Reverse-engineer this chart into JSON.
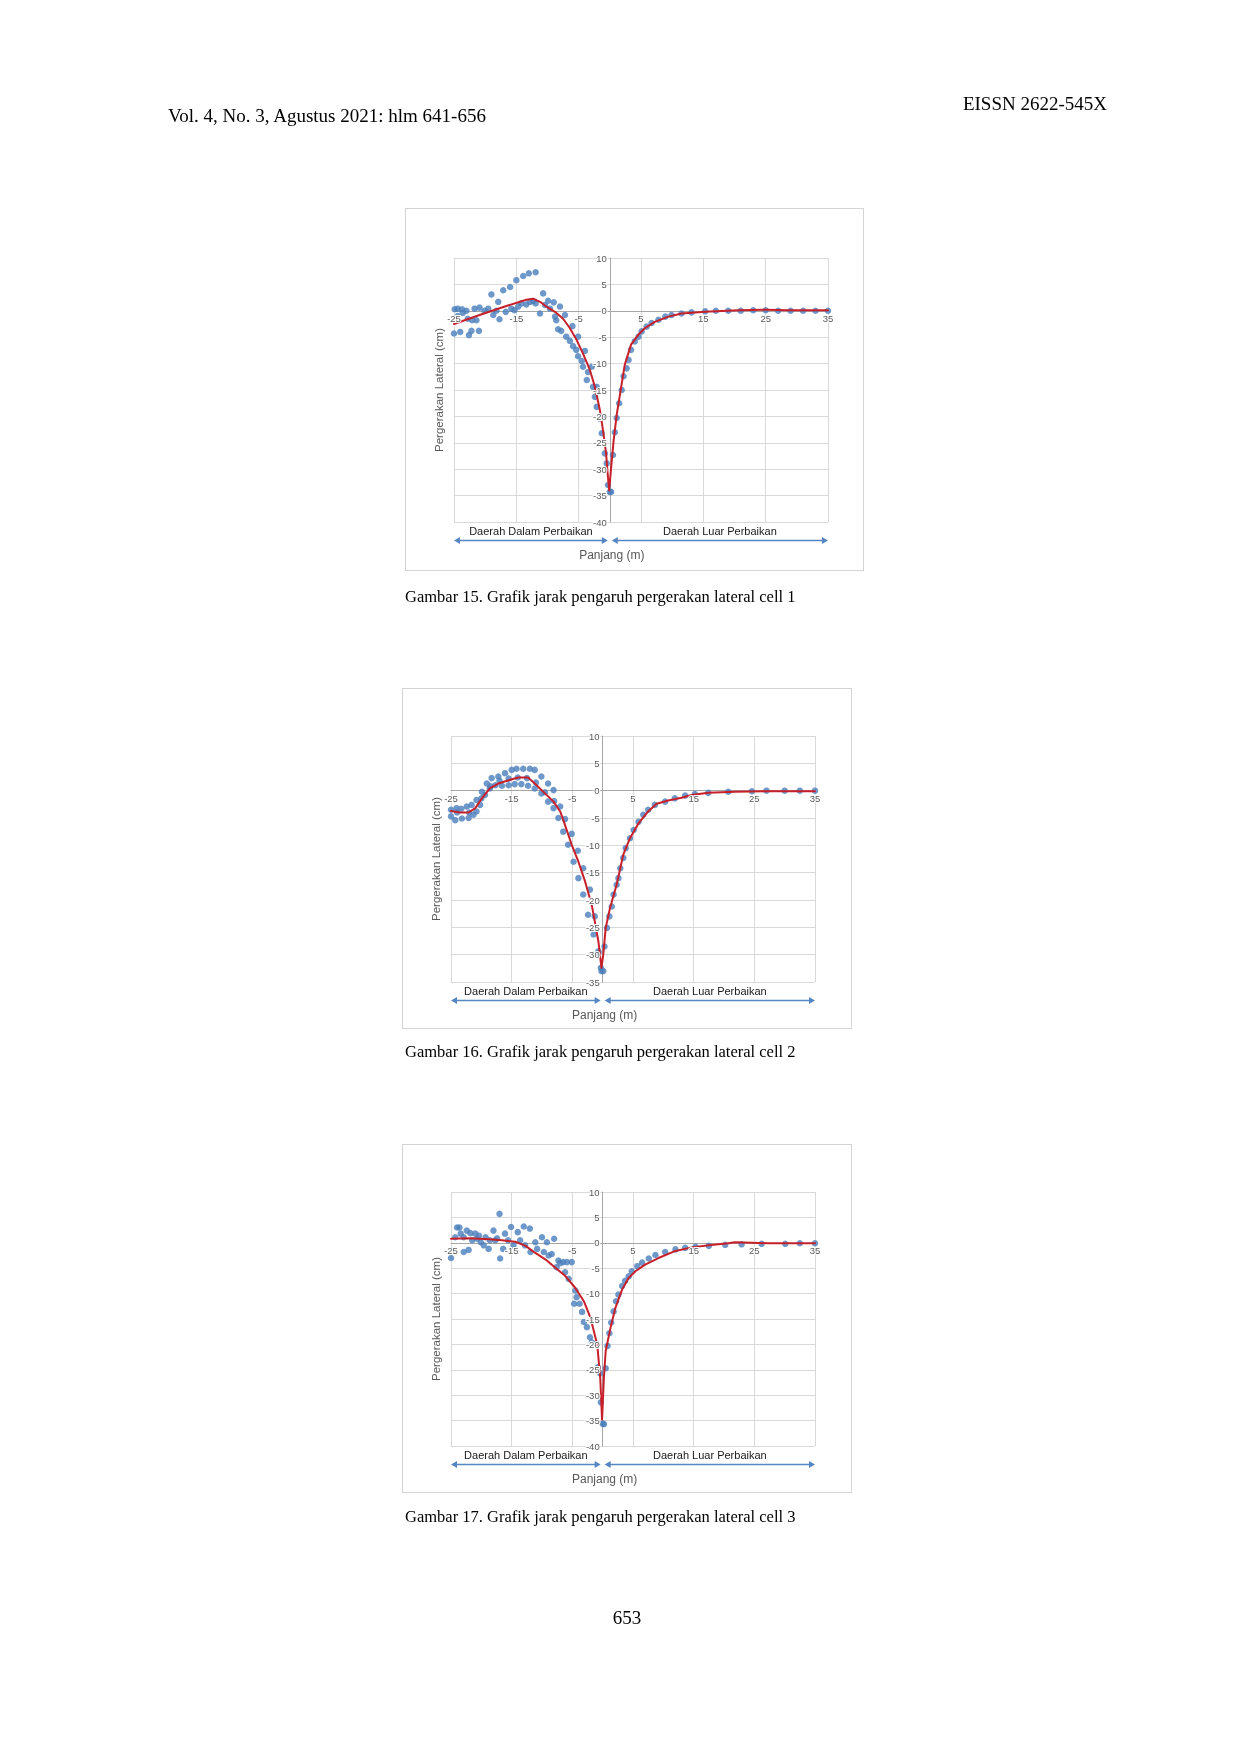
{
  "chart_data": [
    {
      "type": "scatter",
      "xlabel": "Panjang (m)",
      "ylabel": "Pergerakan Lateral (cm)",
      "annotations": [
        "Vol. 4, No. 3, Agustus 2021: hlm 641-656",
        "EISSN 2622-545X",
        "Daerah Dalam Perbaikan",
        "Daerah Luar Perbaikan",
        "Gambar 15. Grafik jarak pengaruh pergerakan lateral cell 1"
      ],
      "xlim": [
        -25,
        35
      ],
      "xticks": [
        -25,
        -15,
        -5,
        5,
        15,
        25,
        35
      ],
      "ylim": [
        -40,
        10
      ],
      "yticks": [
        -40,
        -35,
        -30,
        -25,
        -20,
        -15,
        -10,
        -5,
        0,
        5,
        10
      ],
      "grid": true,
      "marker": "circle",
      "series": [
        {
          "color": "#4a7ebb",
          "x": [
            -25,
            -24.9,
            -24.4,
            -24.4,
            -24,
            -23.7,
            -23.6,
            -23,
            -22.8,
            -22.6,
            -22.2,
            -22.1,
            -21.7,
            -21.4,
            -21,
            -20.9,
            -20.1,
            -19.5,
            -19,
            -18.7,
            -18.2,
            -17.9,
            -17.7,
            -17.1,
            -16.7,
            -16,
            -15.8,
            -15.3,
            -15,
            -14.7,
            -14.2,
            -13.9,
            -13.4,
            -13,
            -12.8,
            -12.3,
            -11.9,
            -11.9,
            -11.2,
            -10.7,
            -10.4,
            -9.9,
            -9.6,
            -9,
            -8.8,
            -8.6,
            -8.3,
            -8,
            -7.8,
            -7.2,
            -7,
            -6.4,
            -6,
            -5.9,
            -5.4,
            -5.1,
            -5.1,
            -4.5,
            -4.3,
            -4,
            -3.7,
            -3.5,
            -2.9,
            -2.7,
            -2.4,
            -2.1,
            -2.1,
            -1.7,
            -1.3,
            -1,
            -0.8,
            -0.5,
            -0.3,
            0,
            0.2,
            0.5,
            0.8,
            1.1,
            1.5,
            1.9,
            2.2,
            2.7,
            3,
            3.4,
            4,
            4.6,
            5.1,
            5.9,
            6.7,
            7.8,
            8.9,
            9.9,
            11.5,
            13.1,
            15.3,
            17,
            19,
            21,
            23,
            25,
            27,
            29,
            31,
            33,
            35
          ],
          "values": [
            -4.3,
            0.3,
            0.4,
            -1,
            -4,
            0.3,
            -0.4,
            0,
            -1.5,
            -4.6,
            -3.8,
            -1.8,
            0.4,
            -1.8,
            -3.8,
            0.6,
            0,
            0.4,
            3.1,
            -0.8,
            0,
            1.7,
            -1.6,
            3.9,
            -0.2,
            4.5,
            0.4,
            0.1,
            5.8,
            0.8,
            1.4,
            6.6,
            1.2,
            7.1,
            1.7,
            1.8,
            7.3,
            1.4,
            -0.5,
            3.3,
            1.1,
            1.9,
            0.4,
            1.6,
            -1.1,
            -1.8,
            -3.5,
            0.8,
            -3.8,
            -0.8,
            -4.9,
            -5.7,
            -2.9,
            -6.7,
            -7.4,
            -4.9,
            -8.6,
            -9.5,
            -10.6,
            -7.6,
            -13.1,
            -11.6,
            -10.6,
            -14.4,
            -16.3,
            -14.4,
            -18.2,
            -20.4,
            -23.2,
            -20.1,
            -27,
            -28.9,
            -33,
            -34.3,
            -34.3,
            -27.3,
            -23,
            -20.3,
            -17.5,
            -15,
            -12.4,
            -10.9,
            -9.3,
            -7.4,
            -5.8,
            -4.9,
            -3.9,
            -3,
            -2.3,
            -1.7,
            -1.1,
            -0.8,
            -0.5,
            -0.3,
            -0.1,
            0,
            0,
            0,
            0.1,
            0.1,
            0,
            0,
            0,
            0,
            0
          ]
        },
        {
          "type": "line",
          "color": "#c8202a",
          "marker": "none",
          "x": [
            -25,
            -20.9,
            -16.6,
            -13.4,
            -12.3,
            -11.2,
            -10.2,
            -8.8,
            -7.5,
            -6.4,
            -5.3,
            -4.3,
            -3.2,
            -2.4,
            -1.6,
            -1.1,
            -0.6,
            -0.4,
            -0.1,
            0.2,
            0.6,
            1.1,
            1.8,
            2.4,
            3.4,
            4.6,
            5.6,
            7.2,
            9.4,
            11.5,
            15.3,
            20.6,
            25,
            28.7,
            35
          ],
          "values": [
            -2.5,
            -0.8,
            0.9,
            2.1,
            2.3,
            1.7,
            0.8,
            -0.2,
            -1.5,
            -3.3,
            -5.6,
            -8.1,
            -11.2,
            -14.4,
            -18.8,
            -22.6,
            -27,
            -30.2,
            -34,
            -29.8,
            -24.7,
            -19.7,
            -14.6,
            -10.2,
            -6.4,
            -4.5,
            -3.3,
            -2.1,
            -1.1,
            -0.5,
            -0.2,
            0.1,
            0.2,
            0.1,
            0.1
          ]
        }
      ]
    },
    {
      "type": "scatter",
      "xlabel": "Panjang (m)",
      "ylabel": "Pergerakan Lateral (cm)",
      "annotations": [
        "Daerah Dalam Perbaikan",
        "Daerah Luar Perbaikan",
        "Gambar 16. Grafik jarak pengaruh pergerakan lateral cell 2"
      ],
      "xlim": [
        -25,
        35
      ],
      "xticks": [
        -25,
        -15,
        -5,
        5,
        15,
        25,
        35
      ],
      "ylim": [
        -35,
        10
      ],
      "yticks": [
        -35,
        -30,
        -25,
        -20,
        -15,
        -10,
        -5,
        0,
        5,
        10
      ],
      "grid": true,
      "marker": "circle",
      "series": [
        {
          "color": "#4a7ebb",
          "x": [
            -25,
            -24.1,
            -23.3,
            -22.4,
            -21.6,
            -20.8,
            -19.9,
            -19.1,
            -18.3,
            -17.2,
            -16.1,
            -15,
            -14.2,
            -13.1,
            -12,
            -11.2,
            -10.1,
            -9,
            -8.1,
            -7,
            -6.2,
            -5.1,
            -4.1,
            -3.2,
            -2.1,
            -1.3,
            -0.7,
            -0.2,
            -25,
            -24.3,
            -23.2,
            -22.1,
            -21.3,
            -20.8,
            -20.2,
            -19.4,
            -18.6,
            -17.7,
            -16.6,
            -15.5,
            -14.5,
            -13.4,
            -12.3,
            -11.2,
            -10.1,
            -9,
            -8.1,
            -7.3,
            -6.5,
            -5.7,
            -4.8,
            -4,
            -3.2,
            -2.4,
            -1.5,
            -0.7,
            -0.3,
            -24,
            -22,
            -20,
            -18.5,
            -17,
            -15.5,
            -14,
            -12.5,
            -11,
            -9.5,
            -8,
            0.1,
            0.3,
            0.7,
            1.1,
            1.5,
            1.8,
            2.3,
            2.6,
            2.9,
            3.4,
            3.8,
            4.5,
            5.1,
            5.9,
            6.7,
            7.5,
            8.6,
            10.3,
            11.9,
            13.6,
            15.2,
            17.4,
            20.7,
            24.6,
            27,
            30,
            32.5,
            35
          ],
          "values": [
            -3.5,
            -3.2,
            -3.3,
            -2.9,
            -2.6,
            -1.7,
            -0.2,
            1.3,
            2.3,
            2.6,
            3.2,
            3.8,
            4,
            4,
            4,
            3.8,
            2.6,
            1.3,
            0.1,
            -2.9,
            -5.2,
            -7.9,
            -11,
            -14.2,
            -18.1,
            -23,
            -29.7,
            -33,
            -4.7,
            -5.4,
            -5.1,
            -5,
            -4.4,
            -3.8,
            -2.6,
            -0.8,
            0.4,
            1,
            0.9,
            1,
            1.2,
            1.2,
            0.9,
            0.4,
            -0.5,
            -2,
            -3.2,
            -5,
            -7.5,
            -9.9,
            -13,
            -16,
            -19,
            -22.7,
            -26.3,
            -29.4,
            -32.4,
            -4,
            -4,
            -1.4,
            0.8,
            1.8,
            2.2,
            2.4,
            2.3,
            1.5,
            -0.3,
            -1.9,
            -33,
            -28.5,
            -25.1,
            -23,
            -21.2,
            -19,
            -17.2,
            -16,
            -14.2,
            -12.3,
            -10.5,
            -8.7,
            -7.2,
            -5.7,
            -4.4,
            -3.5,
            -2.6,
            -2,
            -1.4,
            -0.9,
            -0.6,
            -0.4,
            -0.2,
            -0.1,
            0,
            0,
            0,
            0
          ]
        },
        {
          "type": "line",
          "color": "#c8202a",
          "marker": "none",
          "x": [
            -25,
            -23.5,
            -22.1,
            -21,
            -19.9,
            -18.6,
            -17.2,
            -15.5,
            -13.9,
            -12.3,
            -11.2,
            -9.5,
            -8.1,
            -7,
            -6.2,
            -5.1,
            -4,
            -2.9,
            -1.8,
            -0.7,
            -0.2,
            0.1,
            0.5,
            1.2,
            2.3,
            3.4,
            4.5,
            5.9,
            7.5,
            8.9,
            10.8,
            13,
            14.7,
            17.4,
            21.8,
            27.3,
            35
          ],
          "values": [
            -3.7,
            -4,
            -4,
            -3.2,
            -1.4,
            0.4,
            1.3,
            1.9,
            2.4,
            2.4,
            1.3,
            -0.5,
            -2,
            -3.8,
            -6.3,
            -9.9,
            -13,
            -16.6,
            -20.9,
            -27.6,
            -32.4,
            -30,
            -25.1,
            -21.5,
            -17.2,
            -11.7,
            -8.7,
            -6,
            -3.8,
            -2.4,
            -1.8,
            -1.3,
            -0.8,
            -0.4,
            -0.2,
            -0.1,
            -0.1
          ]
        }
      ]
    },
    {
      "type": "scatter",
      "xlabel": "Panjang (m)",
      "ylabel": "Pergerakan Lateral (cm)",
      "annotations": [
        "Daerah Dalam Perbaikan",
        "Daerah Luar Perbaikan",
        "Gambar 17. Grafik jarak pengaruh pergerakan lateral cell 3",
        "653"
      ],
      "xlim": [
        -25,
        35
      ],
      "xticks": [
        -25,
        -15,
        -5,
        5,
        15,
        25,
        35
      ],
      "ylim": [
        -40,
        10
      ],
      "yticks": [
        -40,
        -35,
        -30,
        -25,
        -20,
        -15,
        -10,
        -5,
        0,
        5,
        10
      ],
      "grid": true,
      "marker": "circle",
      "series": [
        {
          "color": "#4a7ebb",
          "x": [
            -25,
            -24.7,
            -24.3,
            -24,
            -23.6,
            -23.4,
            -22.9,
            -22.9,
            -22.4,
            -22.1,
            -21.8,
            -21.5,
            -21,
            -20.7,
            -20.4,
            -20.1,
            -19.6,
            -19.3,
            -18.8,
            -18.6,
            -18,
            -17.7,
            -17.4,
            -17,
            -16.9,
            -16.4,
            -16.1,
            -15.6,
            -15.1,
            -14.7,
            -14,
            -13.6,
            -13,
            -12.8,
            -12,
            -11.9,
            -11.1,
            -10.8,
            -10,
            -9.7,
            -9.2,
            -8.9,
            -8.4,
            -8,
            -7.6,
            -7.3,
            -7,
            -6.5,
            -6.2,
            -5.9,
            -5.6,
            -5.1,
            -4.7,
            -4.5,
            -4.3,
            -3.8,
            -3.4,
            -3.1,
            -2.6,
            -2.1,
            -1.8,
            -1,
            -0.8,
            -0.4,
            -0.3,
            0,
            0.2,
            0.5,
            0.8,
            1.1,
            1.4,
            1.8,
            2.2,
            2.6,
            3.2,
            3.7,
            4.3,
            4.8,
            5.7,
            6.5,
            7.6,
            8.7,
            10.3,
            12,
            13.6,
            15.3,
            17.5,
            20.2,
            22.9,
            26.2,
            30.1,
            32.5,
            35
          ],
          "values": [
            -3,
            -1.5,
            1.1,
            3,
            3,
            1.8,
            -1.8,
            1.1,
            2.4,
            -1.4,
            1.9,
            0.5,
            1.8,
            0.8,
            1.4,
            0.1,
            -0.5,
            1.1,
            -1.2,
            0.5,
            2.4,
            0.5,
            0.9,
            5.7,
            -3.1,
            -1.2,
            1.8,
            0.5,
            3.1,
            -0.5,
            2.1,
            0.5,
            3.2,
            -0.5,
            2.8,
            -1.8,
            0.1,
            -1.2,
            1.1,
            -1.8,
            0.1,
            -2.5,
            -2.2,
            0.8,
            -4.8,
            -3.5,
            -4,
            -3.8,
            -5.8,
            -3.8,
            -7.1,
            -3.8,
            -12,
            -9.4,
            -10.7,
            -12,
            -13.6,
            -15.6,
            -16.6,
            -18.6,
            -19.6,
            -19.9,
            -24.5,
            -25.7,
            -31.4,
            -35.6,
            -35.7,
            -24.7,
            -20.3,
            -17.8,
            -15.7,
            -13.5,
            -11.5,
            -10.2,
            -8.5,
            -7.5,
            -6.6,
            -5.6,
            -4.6,
            -3.9,
            -3.1,
            -2.4,
            -1.8,
            -1.3,
            -1,
            -0.8,
            -0.6,
            -0.4,
            -0.3,
            -0.2,
            -0.2,
            -0.1,
            -0.1
          ]
        },
        {
          "type": "line",
          "color": "#c8202a",
          "marker": "none",
          "x": [
            -25,
            -22,
            -18.7,
            -16.6,
            -14.4,
            -12.7,
            -11.1,
            -9.4,
            -7.8,
            -6.1,
            -4.5,
            -3.1,
            -2,
            -0.9,
            -0.4,
            -0.1,
            0.2,
            0.5,
            1.3,
            2.1,
            3.2,
            4.3,
            5.4,
            7,
            9.2,
            12,
            14.7,
            17.5,
            20.7,
            21.8,
            24.6,
            27.3,
            35
          ],
          "values": [
            0.8,
            0.9,
            0.7,
            0.5,
            0.2,
            -0.6,
            -2,
            -3.3,
            -4.9,
            -6.6,
            -8.9,
            -11.5,
            -14.8,
            -20,
            -26.6,
            -34.8,
            -26.6,
            -21.3,
            -16.7,
            -12.8,
            -9.2,
            -6.9,
            -5.6,
            -4.3,
            -3,
            -1.6,
            -0.9,
            -0.5,
            -0.1,
            0.1,
            0,
            -0.1,
            -0.1
          ]
        }
      ]
    }
  ]
}
